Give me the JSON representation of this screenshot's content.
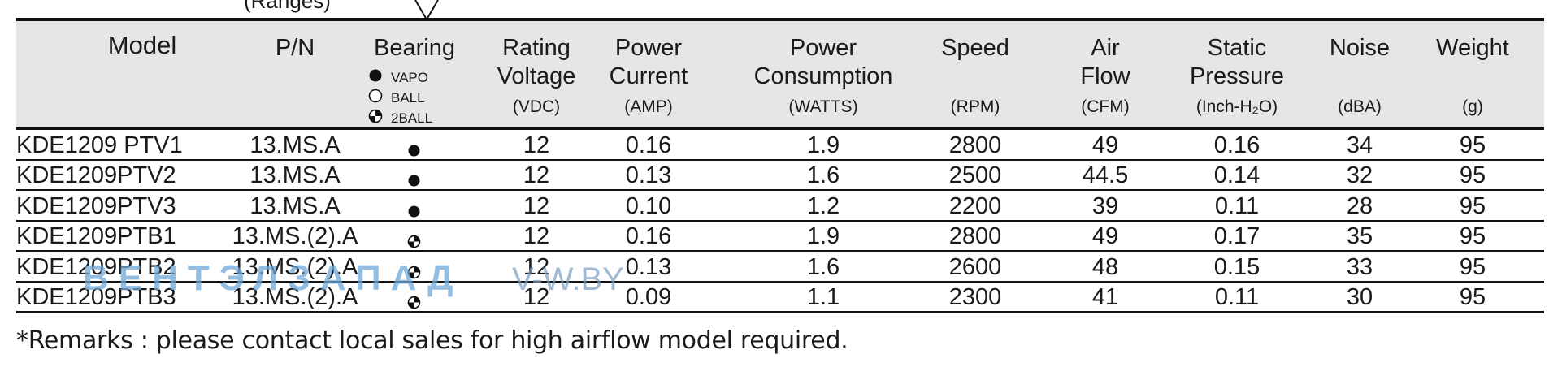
{
  "partial_text": "(Ranges)",
  "columns": [
    {
      "title": [
        "Model"
      ],
      "unit": ""
    },
    {
      "title": [
        "P/N"
      ],
      "unit": ""
    },
    {
      "title": [
        "Bearing"
      ],
      "unit": ""
    },
    {
      "title": [
        "Rating",
        "Voltage"
      ],
      "unit": "(VDC)"
    },
    {
      "title": [
        "Power",
        "Current"
      ],
      "unit": "(AMP)"
    },
    {
      "title": [
        "Power",
        "Consumption"
      ],
      "unit": "(WATTS)"
    },
    {
      "title": [
        "Speed"
      ],
      "unit": "(RPM)"
    },
    {
      "title": [
        "Air",
        "Flow"
      ],
      "unit": "(CFM)"
    },
    {
      "title": [
        "Static",
        "Pressure"
      ],
      "unit": "(Inch-H₂O)"
    },
    {
      "title": [
        "Noise"
      ],
      "unit": "(dBA)"
    },
    {
      "title": [
        "Weight"
      ],
      "unit": "(g)"
    }
  ],
  "bearing_legend": [
    {
      "symbol": "vapo",
      "label": "VAPO"
    },
    {
      "symbol": "ball",
      "label": "BALL"
    },
    {
      "symbol": "2ball",
      "label": "2BALL"
    }
  ],
  "rows": [
    {
      "model": "KDE1209   PTV1",
      "pn": "13.MS.A",
      "bearing": "vapo",
      "voltage": "12",
      "current": "0.16",
      "power": "1.9",
      "speed": "2800",
      "airflow": "49",
      "pressure": "0.16",
      "noise": "34",
      "weight": "95"
    },
    {
      "model": "KDE1209PTV2",
      "pn": "13.MS.A",
      "bearing": "vapo",
      "voltage": "12",
      "current": "0.13",
      "power": "1.6",
      "speed": "2500",
      "airflow": "44.5",
      "pressure": "0.14",
      "noise": "32",
      "weight": "95"
    },
    {
      "model": "KDE1209PTV3",
      "pn": "13.MS.A",
      "bearing": "vapo",
      "voltage": "12",
      "current": "0.10",
      "power": "1.2",
      "speed": "2200",
      "airflow": "39",
      "pressure": "0.11",
      "noise": "28",
      "weight": "95"
    },
    {
      "model": "KDE1209PTB1",
      "pn": "13.MS.(2).A",
      "bearing": "2ball",
      "voltage": "12",
      "current": "0.16",
      "power": "1.9",
      "speed": "2800",
      "airflow": "49",
      "pressure": "0.17",
      "noise": "35",
      "weight": "95"
    },
    {
      "model": "KDE1209PTB2",
      "pn": "13.MS.(2).A",
      "bearing": "2ball",
      "voltage": "12",
      "current": "0.13",
      "power": "1.6",
      "speed": "2600",
      "airflow": "48",
      "pressure": "0.15",
      "noise": "33",
      "weight": "95"
    },
    {
      "model": "KDE1209PTB3",
      "pn": "13.MS.(2).A",
      "bearing": "2ball",
      "voltage": "12",
      "current": "0.09",
      "power": "1.1",
      "speed": "2300",
      "airflow": "41",
      "pressure": "0.11",
      "noise": "30",
      "weight": "95"
    }
  ],
  "remarks": "*Remarks : please contact local sales for high airflow model required.",
  "watermark": {
    "text_left": "ВЕНТЭЛЗАПАД",
    "text_right": "V-W.BY"
  }
}
